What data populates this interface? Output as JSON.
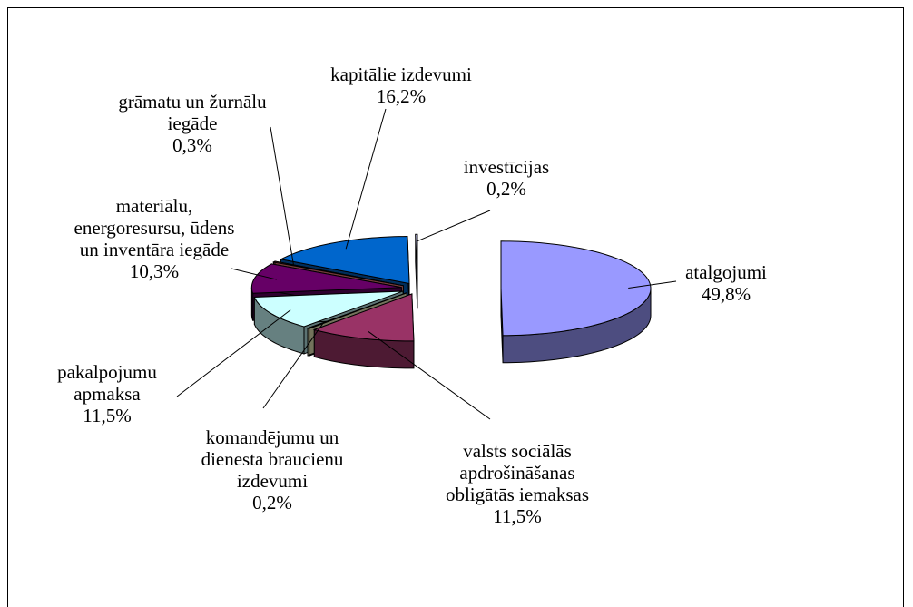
{
  "chart_data": {
    "type": "pie3d",
    "categories": [
      "atalgojumi",
      "valsts sociālās apdrošināšanas obligātās iemaksas",
      "komandējumu un dienesta braucienu izdevumi",
      "pakalpojumu apmaksa",
      "materiālu, energoresursu, ūdens un inventāra iegāde",
      "grāmatu un žurnālu iegāde",
      "kapitālie izdevumi",
      "investīcijas"
    ],
    "values": [
      49.8,
      11.5,
      0.2,
      11.5,
      10.3,
      0.3,
      16.2,
      0.2
    ],
    "value_labels": [
      "49,8%",
      "11,5%",
      "0,2%",
      "11,5%",
      "10,3%",
      "0,3%",
      "16,2%",
      "0,2%"
    ],
    "colors": [
      "#9999ff",
      "#993366",
      "#ffffcc",
      "#ccffff",
      "#660066",
      "#ff8080",
      "#0066cc",
      "#ccccff"
    ]
  }
}
